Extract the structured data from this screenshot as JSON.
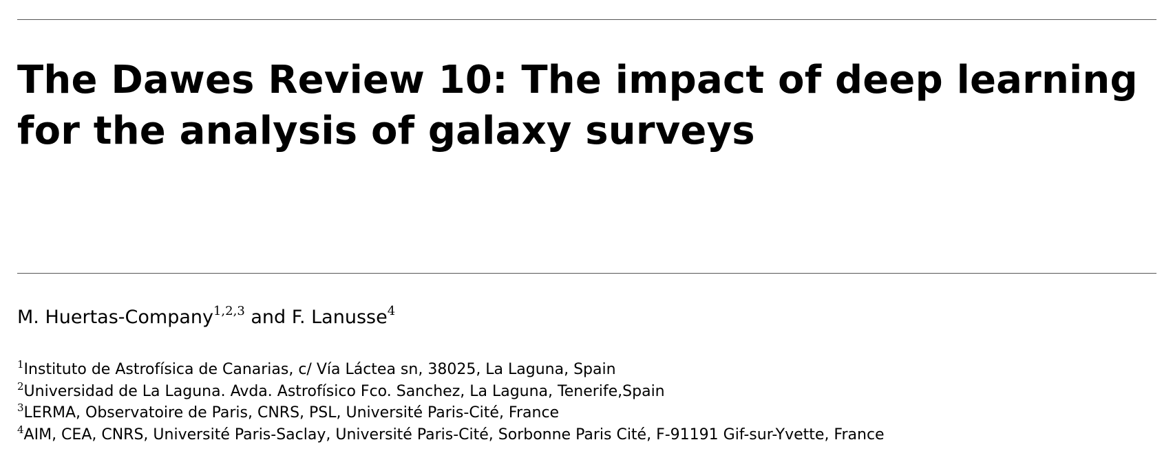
{
  "title": "The Dawes Review 10: The impact of deep learning for the analysis of galaxy surveys",
  "authors": [
    {
      "name": "M. Huertas-Company",
      "sup": "1,2,3"
    },
    {
      "name": "F. Lanusse",
      "sup": "4"
    }
  ],
  "author_separator": "and",
  "affiliations": [
    {
      "num": "1",
      "text": "Instituto de Astrofísica de Canarias, c/ Vía Láctea sn, 38025, La Laguna, Spain"
    },
    {
      "num": "2",
      "text": "Universidad de La Laguna. Avda. Astrofísico Fco. Sanchez, La Laguna, Tenerife,Spain"
    },
    {
      "num": "3",
      "text": "LERMA, Observatoire de Paris, CNRS, PSL, Université Paris-Cité, France"
    },
    {
      "num": "4",
      "text": "AIM, CEA, CNRS, Université Paris-Saclay, Université Paris-Cité, Sorbonne Paris Cité, F-91191 Gif-sur-Yvette, France"
    }
  ]
}
